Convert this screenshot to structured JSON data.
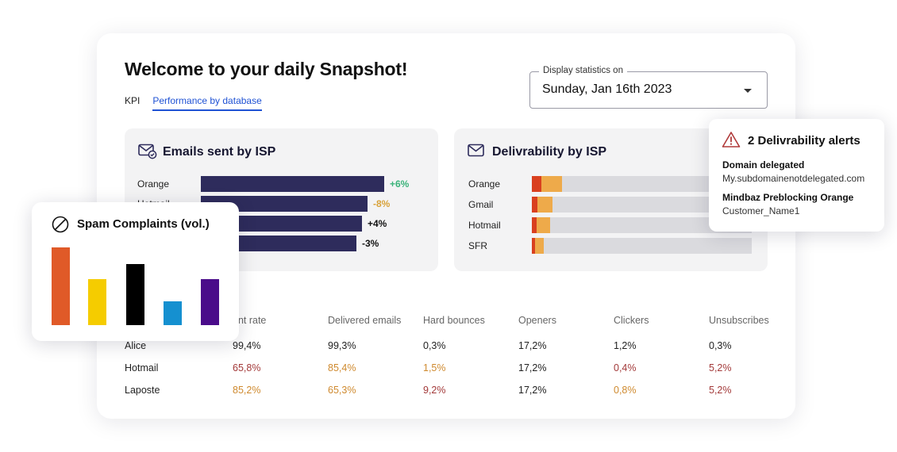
{
  "dashboard": {
    "title": "Welcome to your daily Snapshot!",
    "tabs": [
      {
        "label": "KPI",
        "active": false
      },
      {
        "label": "Performance by database",
        "active": true
      }
    ],
    "date_select": {
      "legend": "Display statistics on",
      "value": "Sunday, Jan 16th 2023"
    }
  },
  "emails_by_isp": {
    "title": "Emails sent by ISP",
    "icon": "mail-check-icon",
    "bar_color": "#2e2c5c",
    "rows": [
      {
        "label": "Orange",
        "value": 100,
        "delta": "+6%",
        "delta_color": "#3bb37a"
      },
      {
        "label": "Hotmail",
        "value": 91,
        "delta": "-8%",
        "delta_color": "#d8a23a"
      },
      {
        "label": "",
        "value": 88,
        "delta": "+4%",
        "delta_color": "#111111"
      },
      {
        "label": "",
        "value": 85,
        "delta": "-3%",
        "delta_color": "#111111"
      }
    ]
  },
  "delivrability_by_isp": {
    "title": "Delivrability by ISP",
    "icon": "mail-icon",
    "colors": {
      "red": "#d9401f",
      "orange": "#eeaa4a",
      "track": "#dadade"
    },
    "rows": [
      {
        "label": "Orange",
        "red": 4.5,
        "orange": 9.5
      },
      {
        "label": "Gmail",
        "red": 2.5,
        "orange": 7
      },
      {
        "label": "Hotmail",
        "red": 2,
        "orange": 6
      },
      {
        "label": "SFR",
        "red": 1.5,
        "orange": 4
      }
    ]
  },
  "performance_table": {
    "headers": [
      "ent rate",
      "Delivered emails",
      "Hard bounces",
      "Openers",
      "Clickers",
      "Unsubscribes"
    ],
    "rows": [
      {
        "name": "Alice",
        "cells": [
          {
            "v": "99,4%",
            "s": "good"
          },
          {
            "v": "99,3%",
            "s": "good"
          },
          {
            "v": "0,3%",
            "s": "good"
          },
          {
            "v": "17,2%",
            "s": "good"
          },
          {
            "v": "1,2%",
            "s": "good"
          },
          {
            "v": "0,3%",
            "s": "good"
          }
        ]
      },
      {
        "name": "Hotmail",
        "cells": [
          {
            "v": "65,8%",
            "s": "bad"
          },
          {
            "v": "85,4%",
            "s": "warn"
          },
          {
            "v": "1,5%",
            "s": "warn"
          },
          {
            "v": "17,2%",
            "s": "good"
          },
          {
            "v": "0,4%",
            "s": "bad"
          },
          {
            "v": "5,2%",
            "s": "bad"
          }
        ]
      },
      {
        "name": "Laposte",
        "cells": [
          {
            "v": "85,2%",
            "s": "warn"
          },
          {
            "v": "65,3%",
            "s": "warn"
          },
          {
            "v": "9,2%",
            "s": "bad"
          },
          {
            "v": "17,2%",
            "s": "good"
          },
          {
            "v": "0,8%",
            "s": "warn"
          },
          {
            "v": "5,2%",
            "s": "bad"
          }
        ]
      }
    ]
  },
  "spam_complaints": {
    "title": "Spam Complaints (vol.)",
    "icon": "prohibited-icon",
    "bars": [
      {
        "value": 98,
        "color": "#e05a28"
      },
      {
        "value": 58,
        "color": "#f5cc00"
      },
      {
        "value": 77,
        "color": "#000000"
      },
      {
        "value": 30,
        "color": "#1590d0"
      },
      {
        "value": 58,
        "color": "#4a0c8a"
      }
    ]
  },
  "alerts": {
    "title": "2 Delivrability alerts",
    "icon": "warning-triangle-icon",
    "items": [
      {
        "title": "Domain delegated",
        "sub": "My.subdomainenotdelegated.com"
      },
      {
        "title": "Mindbaz Preblocking Orange",
        "sub": "Customer_Name1"
      }
    ]
  }
}
